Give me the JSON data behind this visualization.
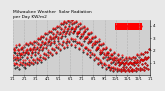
{
  "title": "Milwaukee Weather  Solar Radiation\nper Day KW/m2",
  "background_color": "#e8e8e8",
  "plot_bg": "#d0d0d0",
  "y_min": 0,
  "y_max": 4.5,
  "y_ticks": [
    1,
    2,
    3,
    4
  ],
  "grid_color": "#aaaaaa",
  "color_avg": "#ff0000",
  "color_meas": "#000000",
  "legend_box_color": "#ff0000",
  "num_days": 365,
  "x_tick_interval": 30,
  "solar_data": [
    1.2,
    1.5,
    0.8,
    2.1,
    1.9,
    1.3,
    0.6,
    1.8,
    2.3,
    1.0,
    1.4,
    0.7,
    1.6,
    2.0,
    1.2,
    0.5,
    1.8,
    2.4,
    1.6,
    0.9,
    1.3,
    2.1,
    1.7,
    0.8,
    1.5,
    2.2,
    1.9,
    1.1,
    0.7,
    1.6,
    2.3,
    1.8,
    1.0,
    0.6,
    1.9,
    2.5,
    2.0,
    1.4,
    0.9,
    1.7,
    2.4,
    1.8,
    1.1,
    0.8,
    2.0,
    2.6,
    2.1,
    1.5,
    1.0,
    1.8,
    2.5,
    1.9,
    1.2,
    0.9,
    2.1,
    2.7,
    2.3,
    1.6,
    1.1,
    1.9,
    2.7,
    2.1,
    1.3,
    1.0,
    2.2,
    2.9,
    2.5,
    1.8,
    1.2,
    2.0,
    2.9,
    2.3,
    1.5,
    1.1,
    2.4,
    3.1,
    2.7,
    2.0,
    1.4,
    2.2,
    3.1,
    2.5,
    1.7,
    1.3,
    2.6,
    3.3,
    2.9,
    2.2,
    1.6,
    2.4,
    3.3,
    2.7,
    1.9,
    1.5,
    2.8,
    3.5,
    3.1,
    2.4,
    1.8,
    2.6,
    3.5,
    2.9,
    2.1,
    1.6,
    3.0,
    3.7,
    3.3,
    2.6,
    2.0,
    2.8,
    3.7,
    3.1,
    2.3,
    1.8,
    3.2,
    3.9,
    3.5,
    2.8,
    2.2,
    3.0,
    3.9,
    3.3,
    2.5,
    2.0,
    3.4,
    4.1,
    3.7,
    3.0,
    2.4,
    3.2,
    4.1,
    3.5,
    2.7,
    2.2,
    3.6,
    4.3,
    3.9,
    3.2,
    2.6,
    3.4,
    4.2,
    3.6,
    2.8,
    2.3,
    3.7,
    4.4,
    4.0,
    3.3,
    2.7,
    3.5,
    4.3,
    3.7,
    2.9,
    2.4,
    3.8,
    4.5,
    4.1,
    3.4,
    2.8,
    3.6,
    4.2,
    3.6,
    2.8,
    2.3,
    3.7,
    4.3,
    3.9,
    3.2,
    2.6,
    3.4,
    4.0,
    3.4,
    2.6,
    2.1,
    3.5,
    4.1,
    3.7,
    3.0,
    2.4,
    3.2,
    3.8,
    3.2,
    2.4,
    1.9,
    3.3,
    3.9,
    3.5,
    2.8,
    2.2,
    3.0,
    3.6,
    3.0,
    2.2,
    1.7,
    3.1,
    3.7,
    3.3,
    2.6,
    2.0,
    2.8,
    3.3,
    2.7,
    1.9,
    1.5,
    2.8,
    3.4,
    3.0,
    2.3,
    1.7,
    2.5,
    3.0,
    2.4,
    1.6,
    1.2,
    2.5,
    3.1,
    2.7,
    2.0,
    1.4,
    2.2,
    2.7,
    2.1,
    1.3,
    0.9,
    2.2,
    2.8,
    2.4,
    1.7,
    1.1,
    1.9,
    2.4,
    1.8,
    1.0,
    0.7,
    1.9,
    2.5,
    2.1,
    1.4,
    0.9,
    1.7,
    2.1,
    1.5,
    0.8,
    0.5,
    1.6,
    2.2,
    1.8,
    1.2,
    0.7,
    1.5,
    1.8,
    1.3,
    0.7,
    0.4,
    1.4,
    2.0,
    1.6,
    1.0,
    0.6,
    1.3,
    1.6,
    1.1,
    0.6,
    0.3,
    1.2,
    1.8,
    1.4,
    0.9,
    0.5,
    1.2,
    1.4,
    1.0,
    0.5,
    0.3,
    1.1,
    1.6,
    1.2,
    0.8,
    0.4,
    1.1,
    1.3,
    0.9,
    0.5,
    0.3,
    1.0,
    1.5,
    1.1,
    0.7,
    0.4,
    1.0,
    1.2,
    0.8,
    0.5,
    0.3,
    1.0,
    1.4,
    1.1,
    0.7,
    0.4,
    1.0,
    1.2,
    0.9,
    0.5,
    0.3,
    1.0,
    1.4,
    1.1,
    0.7,
    0.4,
    1.0,
    1.3,
    0.9,
    0.5,
    0.3,
    1.0,
    1.5,
    1.1,
    0.8,
    0.4,
    1.1,
    1.4,
    1.0,
    0.6,
    0.3,
    1.1,
    1.6,
    1.2,
    0.8,
    0.5,
    1.1,
    1.5,
    1.1,
    0.6,
    0.4,
    1.2,
    1.7,
    1.3,
    0.9,
    0.5,
    1.2,
    1.7,
    1.2,
    0.7,
    0.4,
    1.3,
    1.9,
    1.5,
    1.0,
    0.6,
    1.3,
    1.9,
    1.4,
    0.8,
    0.5,
    1.5,
    2.1
  ],
  "avg_data": [
    1.4,
    1.6,
    1.0,
    2.2,
    2.0,
    1.5,
    0.9,
    2.0,
    2.4,
    1.2,
    1.5,
    0.9,
    1.8,
    2.1,
    1.4,
    0.8,
    2.0,
    2.5,
    1.7,
    1.1,
    1.5,
    2.2,
    1.8,
    1.0,
    1.7,
    2.3,
    2.0,
    1.2,
    0.9,
    1.8,
    2.4,
    1.9,
    1.2,
    0.8,
    2.0,
    2.6,
    2.1,
    1.5,
    1.0,
    1.8,
    2.5,
    1.9,
    1.2,
    0.9,
    2.1,
    2.7,
    2.2,
    1.6,
    1.1,
    1.9,
    2.6,
    2.0,
    1.3,
    1.0,
    2.2,
    2.8,
    2.4,
    1.7,
    1.2,
    2.0,
    2.8,
    2.2,
    1.4,
    1.1,
    2.3,
    3.0,
    2.6,
    1.9,
    1.3,
    2.1,
    3.0,
    2.4,
    1.6,
    1.2,
    2.5,
    3.2,
    2.8,
    2.1,
    1.5,
    2.3,
    3.2,
    2.6,
    1.8,
    1.4,
    2.7,
    3.4,
    3.0,
    2.3,
    1.7,
    2.5,
    3.4,
    2.8,
    2.0,
    1.6,
    2.9,
    3.6,
    3.2,
    2.5,
    1.9,
    2.7,
    3.6,
    3.0,
    2.2,
    1.7,
    3.1,
    3.8,
    3.4,
    2.7,
    2.1,
    2.9,
    3.8,
    3.2,
    2.4,
    1.9,
    3.3,
    4.0,
    3.6,
    2.9,
    2.3,
    3.1,
    4.0,
    3.4,
    2.6,
    2.1,
    3.5,
    4.2,
    3.8,
    3.1,
    2.5,
    3.3,
    4.2,
    3.6,
    2.8,
    2.3,
    3.7,
    4.4,
    4.0,
    3.3,
    2.7,
    3.5,
    4.3,
    3.7,
    2.9,
    2.4,
    3.8,
    4.5,
    4.1,
    3.4,
    2.8,
    3.6,
    4.4,
    3.8,
    3.0,
    2.5,
    3.9,
    4.5,
    4.2,
    3.5,
    2.9,
    3.7,
    4.3,
    3.7,
    2.9,
    2.4,
    3.8,
    4.4,
    4.0,
    3.3,
    2.7,
    3.5,
    4.1,
    3.5,
    2.7,
    2.2,
    3.6,
    4.2,
    3.8,
    3.1,
    2.5,
    3.3,
    3.9,
    3.3,
    2.5,
    2.0,
    3.4,
    4.0,
    3.6,
    2.9,
    2.3,
    3.1,
    3.7,
    3.1,
    2.3,
    1.8,
    3.2,
    3.8,
    3.4,
    2.7,
    2.1,
    2.9,
    3.4,
    2.8,
    2.0,
    1.6,
    2.9,
    3.5,
    3.1,
    2.4,
    1.8,
    2.6,
    3.1,
    2.5,
    1.7,
    1.3,
    2.6,
    3.2,
    2.8,
    2.1,
    1.5,
    2.3,
    2.8,
    2.2,
    1.4,
    1.0,
    2.3,
    2.9,
    2.5,
    1.8,
    1.2,
    2.0,
    2.5,
    1.9,
    1.1,
    0.8,
    2.0,
    2.6,
    2.2,
    1.5,
    1.0,
    1.8,
    2.2,
    1.6,
    0.9,
    0.6,
    1.7,
    2.3,
    1.9,
    1.3,
    0.8,
    1.6,
    1.9,
    1.4,
    0.8,
    0.5,
    1.5,
    2.1,
    1.7,
    1.1,
    0.7,
    1.4,
    1.7,
    1.2,
    0.7,
    0.4,
    1.3,
    1.9,
    1.5,
    0.9,
    0.6,
    1.2,
    1.5,
    1.1,
    0.6,
    0.4,
    1.2,
    1.7,
    1.3,
    0.8,
    0.5,
    1.1,
    1.4,
    1.0,
    0.5,
    0.3,
    1.1,
    1.6,
    1.2,
    0.7,
    0.4,
    1.0,
    1.3,
    0.9,
    0.5,
    0.3,
    1.0,
    1.5,
    1.1,
    0.7,
    0.4,
    1.0,
    1.3,
    0.9,
    0.5,
    0.3,
    1.0,
    1.5,
    1.1,
    0.7,
    0.4,
    1.0,
    1.4,
    1.0,
    0.5,
    0.3,
    1.0,
    1.5,
    1.2,
    0.8,
    0.4,
    1.1,
    1.5,
    1.1,
    0.6,
    0.4,
    1.1,
    1.7,
    1.2,
    0.8,
    0.5,
    1.1,
    1.6,
    1.1,
    0.6,
    0.4,
    1.2,
    1.8,
    1.3,
    0.9,
    0.5,
    1.2,
    1.7,
    1.2,
    0.7,
    0.4,
    1.3,
    1.9,
    1.5,
    1.0,
    0.6,
    1.3,
    1.9,
    1.4,
    0.8,
    0.5,
    1.5,
    2.1
  ],
  "x_tick_positions": [
    0,
    30,
    60,
    90,
    120,
    150,
    180,
    210,
    240,
    270,
    300,
    330,
    360
  ],
  "x_tick_labels": [
    "1/1",
    "2/1",
    "3/1",
    "4/1",
    "5/1",
    "6/1",
    "7/1",
    "8/1",
    "9/1",
    "10/1",
    "11/1",
    "12/1",
    "1/1"
  ]
}
